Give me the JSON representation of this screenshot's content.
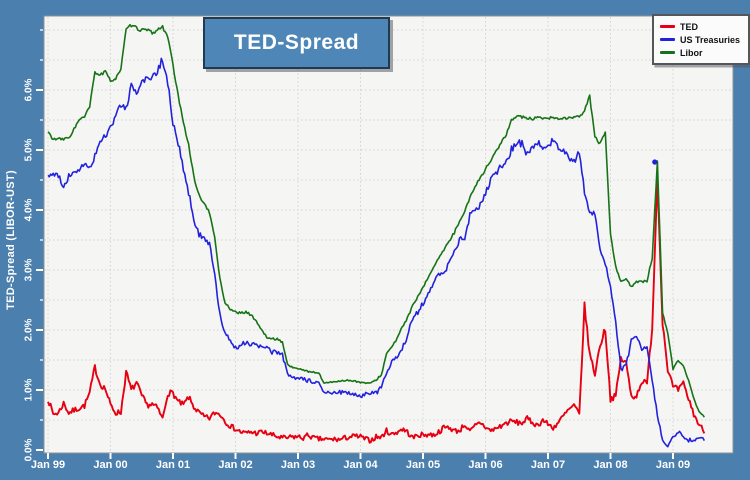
{
  "colors": {
    "frame": "#4a7fae",
    "title_box": "#4e87b7",
    "title_box_border": "#203a52",
    "plot_bg": "#f5f5f3",
    "plot_border": "#8f9398",
    "grid": "#d2d2d2",
    "tick": "#ffffff",
    "axis_text": "#ffffff"
  },
  "chart_data": {
    "type": "line",
    "title": "TED-Spread",
    "ylabel": "TED-Spread (LIBOR-UST)",
    "x_unit": "months since Jan 1999",
    "x_tick_labels": [
      "Jan 99",
      "Jan 00",
      "Jan 01",
      "Jan 02",
      "Jan 03",
      "Jan 04",
      "Jan 05",
      "Jan 06",
      "Jan 07",
      "Jan 08",
      "Jan 09"
    ],
    "x_tick_months": [
      0,
      12,
      24,
      36,
      48,
      60,
      72,
      84,
      96,
      108,
      120
    ],
    "y_tick_labels": [
      "0.0%",
      "1.0%",
      "2.0%",
      "3.0%",
      "4.0%",
      "5.0%",
      "6.0%"
    ],
    "y_tick_values": [
      0,
      1,
      2,
      3,
      4,
      5,
      6
    ],
    "y_minor_step": 0.5,
    "ylim": [
      0,
      7.25
    ],
    "xlim_months": [
      0,
      132
    ],
    "grid": true,
    "legend_position": "top-right",
    "peak_marker": {
      "x_month": 116.5,
      "value": 4.8,
      "color": "#2222dd"
    },
    "series": [
      {
        "name": "TED",
        "color": "#e60012",
        "jitter": 0.07,
        "monthly_values": [
          0.85,
          0.6,
          0.62,
          0.78,
          0.62,
          0.66,
          0.7,
          0.74,
          0.95,
          1.38,
          1.1,
          1.02,
          0.75,
          0.62,
          0.63,
          1.3,
          1.0,
          1.12,
          0.9,
          0.75,
          0.76,
          0.7,
          0.52,
          0.95,
          0.95,
          0.8,
          0.75,
          0.88,
          0.72,
          0.62,
          0.55,
          0.53,
          0.62,
          0.6,
          0.48,
          0.4,
          0.35,
          0.3,
          0.28,
          0.3,
          0.28,
          0.3,
          0.28,
          0.25,
          0.22,
          0.2,
          0.2,
          0.22,
          0.22,
          0.2,
          0.25,
          0.2,
          0.18,
          0.18,
          0.17,
          0.18,
          0.17,
          0.2,
          0.22,
          0.23,
          0.22,
          0.18,
          0.16,
          0.22,
          0.21,
          0.32,
          0.26,
          0.3,
          0.35,
          0.3,
          0.2,
          0.25,
          0.25,
          0.26,
          0.25,
          0.3,
          0.37,
          0.38,
          0.32,
          0.32,
          0.43,
          0.3,
          0.4,
          0.46,
          0.38,
          0.32,
          0.36,
          0.4,
          0.45,
          0.48,
          0.46,
          0.45,
          0.52,
          0.46,
          0.41,
          0.5,
          0.43,
          0.37,
          0.46,
          0.57,
          0.67,
          0.74,
          0.59,
          2.4,
          1.6,
          1.27,
          1.75,
          2.02,
          0.85,
          0.9,
          1.52,
          1.45,
          0.9,
          0.9,
          1.15,
          1.1,
          2.05,
          4.55,
          2.13,
          1.35,
          1.05,
          1.0,
          1.1,
          0.85,
          0.6,
          0.42,
          0.32
        ]
      },
      {
        "name": "US Treasuries",
        "color": "#2222dd",
        "jitter": 0.05,
        "monthly_values": [
          4.55,
          4.62,
          4.55,
          4.4,
          4.55,
          4.68,
          4.6,
          4.8,
          4.72,
          4.9,
          5.1,
          5.25,
          5.4,
          5.58,
          5.72,
          5.7,
          6.08,
          5.9,
          6.1,
          6.25,
          6.18,
          6.3,
          6.52,
          6.1,
          5.45,
          5.1,
          4.7,
          4.3,
          3.85,
          3.6,
          3.55,
          3.42,
          2.95,
          2.25,
          1.95,
          1.8,
          1.7,
          1.75,
          1.8,
          1.76,
          1.74,
          1.72,
          1.7,
          1.62,
          1.64,
          1.6,
          1.25,
          1.2,
          1.18,
          1.18,
          1.15,
          1.14,
          1.1,
          0.94,
          0.95,
          0.98,
          0.96,
          0.95,
          0.95,
          0.92,
          0.9,
          0.94,
          0.95,
          0.95,
          1.04,
          1.28,
          1.46,
          1.55,
          1.7,
          1.9,
          2.2,
          2.3,
          2.45,
          2.62,
          2.8,
          2.9,
          2.95,
          3.1,
          3.3,
          3.5,
          3.55,
          3.9,
          4.0,
          4.08,
          4.3,
          4.5,
          4.62,
          4.72,
          4.8,
          5.02,
          5.12,
          5.1,
          4.92,
          5.06,
          5.12,
          5.02,
          5.1,
          5.16,
          5.06,
          4.96,
          4.86,
          4.8,
          4.96,
          4.3,
          3.95,
          3.95,
          3.35,
          3.1,
          2.75,
          2.15,
          1.35,
          1.4,
          1.82,
          1.9,
          1.65,
          1.72,
          1.15,
          0.6,
          0.15,
          0.05,
          0.2,
          0.3,
          0.22,
          0.16,
          0.18,
          0.18,
          0.18
        ]
      },
      {
        "name": "Libor",
        "color": "#177317",
        "jitter": 0.02,
        "monthly_values": [
          5.3,
          5.18,
          5.18,
          5.18,
          5.2,
          5.35,
          5.5,
          5.55,
          5.72,
          6.3,
          6.25,
          6.3,
          6.15,
          6.2,
          6.35,
          7.0,
          7.08,
          7.03,
          7.0,
          7.0,
          6.95,
          7.0,
          7.05,
          6.9,
          6.4,
          5.9,
          5.45,
          5.1,
          4.55,
          4.25,
          4.1,
          3.95,
          3.55,
          2.85,
          2.45,
          2.35,
          2.3,
          2.28,
          2.3,
          2.25,
          2.15,
          2.0,
          1.88,
          1.85,
          1.85,
          1.8,
          1.42,
          1.38,
          1.35,
          1.34,
          1.3,
          1.3,
          1.28,
          1.12,
          1.12,
          1.14,
          1.15,
          1.16,
          1.16,
          1.15,
          1.12,
          1.12,
          1.11,
          1.17,
          1.25,
          1.6,
          1.72,
          1.85,
          2.05,
          2.2,
          2.4,
          2.55,
          2.7,
          2.88,
          3.05,
          3.2,
          3.32,
          3.48,
          3.62,
          3.82,
          3.98,
          4.2,
          4.4,
          4.54,
          4.68,
          4.82,
          4.98,
          5.12,
          5.25,
          5.5,
          5.58,
          5.55,
          5.52,
          5.52,
          5.53,
          5.52,
          5.53,
          5.53,
          5.52,
          5.53,
          5.53,
          5.54,
          5.55,
          5.65,
          5.9,
          5.22,
          5.1,
          5.28,
          3.6,
          3.05,
          2.82,
          2.85,
          2.72,
          2.8,
          2.8,
          2.82,
          3.2,
          4.8,
          2.28,
          1.95,
          1.35,
          1.5,
          1.4,
          1.15,
          0.85,
          0.65,
          0.55
        ]
      }
    ]
  }
}
